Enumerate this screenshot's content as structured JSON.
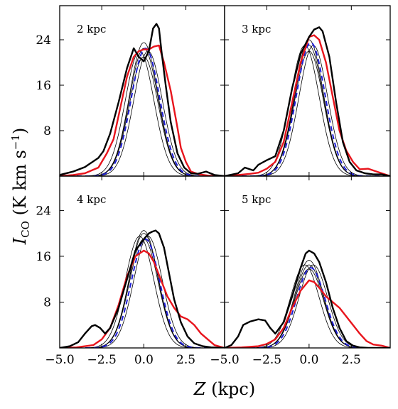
{
  "chart_data": {
    "type": "line",
    "ylabel": "I_CO (K km s^-1)",
    "xlabel": "Z (kpc)",
    "xlim": [
      -5.0,
      4.8
    ],
    "ylim": [
      0,
      30
    ],
    "x_ticks": [
      "−5.0",
      "−2.5",
      "0.0",
      "2.5"
    ],
    "x_tick_values": [
      -5.0,
      -2.5,
      0.0,
      2.5
    ],
    "y_ticks": [
      "8",
      "16",
      "24"
    ],
    "y_tick_values": [
      8,
      16,
      24
    ],
    "series_colors": {
      "observed_black": "#000000",
      "observed_red": "#e8141c",
      "model_dashed": "#1f1fd6",
      "model_envelope": "#000000"
    },
    "panels": [
      {
        "label": "2 kpc",
        "series": [
          {
            "style": "observed_black",
            "x": [
              -5,
              -4.2,
              -3.5,
              -3.2,
              -2.7,
              -2.4,
              -2.0,
              -1.5,
              -1.0,
              -0.6,
              -0.3,
              0.0,
              0.3,
              0.55,
              0.75,
              0.9,
              1.05,
              1.3,
              1.6,
              2.0,
              2.4,
              2.8,
              3.2,
              3.7,
              4.2,
              4.8
            ],
            "y": [
              0.2,
              0.8,
              1.6,
              2.2,
              3.2,
              4.4,
              7.5,
              13,
              19,
              22.5,
              21,
              20.2,
              22,
              26,
              26.8,
              26,
              22,
              16,
              9.5,
              4,
              1.5,
              0.5,
              0.4,
              0.8,
              0.2,
              0
            ]
          },
          {
            "style": "observed_red",
            "x": [
              -5,
              -4.2,
              -3.5,
              -2.7,
              -2.2,
              -1.8,
              -1.4,
              -1.0,
              -0.6,
              -0.3,
              0.0,
              0.3,
              0.6,
              0.9,
              1.2,
              1.6,
              2.0,
              2.2,
              2.5,
              2.8,
              3.3,
              3.8,
              4.3,
              4.8
            ],
            "y": [
              0,
              0.2,
              0.5,
              1.5,
              4,
              6.5,
              12,
              17.5,
              21,
              22,
              22.3,
              22.3,
              22.8,
              23,
              20,
              15,
              8.5,
              5,
              2.5,
              0.8,
              0.3,
              0.1,
              0,
              0
            ]
          },
          {
            "style": "model_envelope",
            "center": 0.0,
            "sigma": 0.85,
            "peaks": [
              21,
              22.5,
              23.5
            ]
          },
          {
            "style": "model_envelope",
            "center": 0.25,
            "sigma": 0.85,
            "peaks": [
              22
            ]
          },
          {
            "style": "model_envelope",
            "center": -0.25,
            "sigma": 0.85,
            "peaks": [
              22
            ]
          },
          {
            "style": "model_dashed",
            "center": 0.1,
            "sigma": 0.85,
            "peak": 22.5
          }
        ]
      },
      {
        "label": "3 kpc",
        "series": [
          {
            "style": "observed_black",
            "x": [
              -5,
              -4.2,
              -3.8,
              -3.3,
              -3.0,
              -2.5,
              -2.0,
              -1.5,
              -1.0,
              -0.5,
              0.0,
              0.3,
              0.6,
              0.8,
              1.2,
              1.6,
              2.0,
              2.4,
              2.8,
              3.3,
              3.8,
              4.3,
              4.8
            ],
            "y": [
              0,
              0.5,
              1.5,
              1.0,
              2.0,
              2.8,
              3.5,
              8,
              15.5,
              21.5,
              24.5,
              25.8,
              26.2,
              25.5,
              21,
              13,
              6,
              2.5,
              1,
              0.5,
              0.3,
              0.3,
              0
            ]
          },
          {
            "style": "observed_red",
            "x": [
              -5,
              -4.2,
              -3.5,
              -3.0,
              -2.5,
              -2.0,
              -1.5,
              -1.0,
              -0.5,
              0.0,
              0.3,
              0.6,
              1.0,
              1.4,
              1.8,
              2.2,
              2.6,
              3.0,
              3.5,
              4.0,
              4.5,
              4.8
            ],
            "y": [
              0,
              0.2,
              0.4,
              0.6,
              1.3,
              2.5,
              6,
              13,
              20,
              24.5,
              24.8,
              24,
              20,
              14,
              8,
              4.5,
              2.5,
              1.2,
              1.3,
              0.8,
              0.3,
              0
            ]
          },
          {
            "style": "model_envelope",
            "center": 0.0,
            "sigma": 0.85,
            "peaks": [
              22,
              23,
              24
            ]
          },
          {
            "style": "model_envelope",
            "center": 0.25,
            "sigma": 0.85,
            "peaks": [
              23
            ]
          },
          {
            "style": "model_envelope",
            "center": -0.25,
            "sigma": 0.85,
            "peaks": [
              23
            ]
          },
          {
            "style": "model_dashed",
            "center": 0.1,
            "sigma": 0.85,
            "peak": 23.5
          }
        ]
      },
      {
        "label": "4 kpc",
        "series": [
          {
            "style": "observed_black",
            "x": [
              -5,
              -4.4,
              -3.9,
              -3.5,
              -3.1,
              -2.9,
              -2.6,
              -2.3,
              -2.0,
              -1.5,
              -1.0,
              -0.5,
              0.0,
              0.3,
              0.5,
              0.7,
              0.9,
              1.2,
              1.5,
              1.8,
              2.2,
              2.6,
              3.0,
              3.5,
              4.0,
              4.8
            ],
            "y": [
              0,
              0.3,
              1,
              2.5,
              3.8,
              4.0,
              3.5,
              2.5,
              3.5,
              7,
              12,
              17,
              19,
              20,
              20.3,
              20.5,
              20,
              17.5,
              13,
              8.5,
              4.5,
              2,
              0.8,
              0.3,
              0.1,
              0
            ]
          },
          {
            "style": "observed_red",
            "x": [
              -5,
              -4.0,
              -3.0,
              -2.5,
              -2.0,
              -1.5,
              -1.0,
              -0.5,
              0.0,
              0.3,
              0.6,
              1.0,
              1.4,
              1.8,
              2.2,
              2.6,
              3.0,
              3.4,
              3.8,
              4.2,
              4.8
            ],
            "y": [
              0,
              0.1,
              0.5,
              1.5,
              3.5,
              7.5,
              12.5,
              16,
              17,
              16.5,
              15,
              12,
              9,
              7,
              5.5,
              5,
              4,
              2.5,
              1.5,
              0.5,
              0
            ]
          },
          {
            "style": "model_envelope",
            "center": 0.0,
            "sigma": 0.85,
            "peaks": [
              19,
              20,
              20.5
            ]
          },
          {
            "style": "model_envelope",
            "center": 0.25,
            "sigma": 0.85,
            "peaks": [
              19.5
            ]
          },
          {
            "style": "model_envelope",
            "center": -0.25,
            "sigma": 0.85,
            "peaks": [
              19.5
            ]
          },
          {
            "style": "model_dashed",
            "center": 0.1,
            "sigma": 0.85,
            "peak": 19
          }
        ]
      },
      {
        "label": "5 kpc",
        "series": [
          {
            "style": "observed_black",
            "x": [
              -5,
              -4.6,
              -4.2,
              -3.9,
              -3.5,
              -3.0,
              -2.6,
              -2.3,
              -2.0,
              -1.5,
              -1.0,
              -0.5,
              -0.2,
              0.0,
              0.3,
              0.6,
              1.0,
              1.4,
              1.8,
              2.2,
              2.6,
              3.0,
              3.5,
              4.0,
              4.8
            ],
            "y": [
              0,
              0.5,
              2,
              4,
              4.6,
              5,
              4.8,
              3.5,
              2.5,
              4.5,
              9,
              14,
              16.5,
              17,
              16.5,
              15,
              11.5,
              7,
              3.5,
              1.2,
              0.4,
              0.1,
              0,
              0,
              0
            ]
          },
          {
            "style": "observed_red",
            "x": [
              -5,
              -4.0,
              -3.0,
              -2.5,
              -2.0,
              -1.5,
              -1.0,
              -0.5,
              0.0,
              0.3,
              0.6,
              1.0,
              1.4,
              1.8,
              2.2,
              2.6,
              3.0,
              3.4,
              3.8,
              4.3,
              4.8
            ],
            "y": [
              0,
              0.1,
              0.3,
              0.7,
              1.5,
              3.5,
              7,
              10,
              11.8,
              11.5,
              10.5,
              9,
              8,
              7,
              5.5,
              4,
              2.5,
              1.2,
              0.6,
              0.4,
              0
            ]
          },
          {
            "style": "model_envelope",
            "center": 0.0,
            "sigma": 0.85,
            "peaks": [
              13.8,
              14.5,
              15.3
            ]
          },
          {
            "style": "model_envelope",
            "center": 0.25,
            "sigma": 0.85,
            "peaks": [
              14.5
            ]
          },
          {
            "style": "model_envelope",
            "center": -0.25,
            "sigma": 0.85,
            "peaks": [
              14.5
            ]
          },
          {
            "style": "model_dashed",
            "center": 0.1,
            "sigma": 0.85,
            "peak": 14
          }
        ]
      }
    ]
  }
}
